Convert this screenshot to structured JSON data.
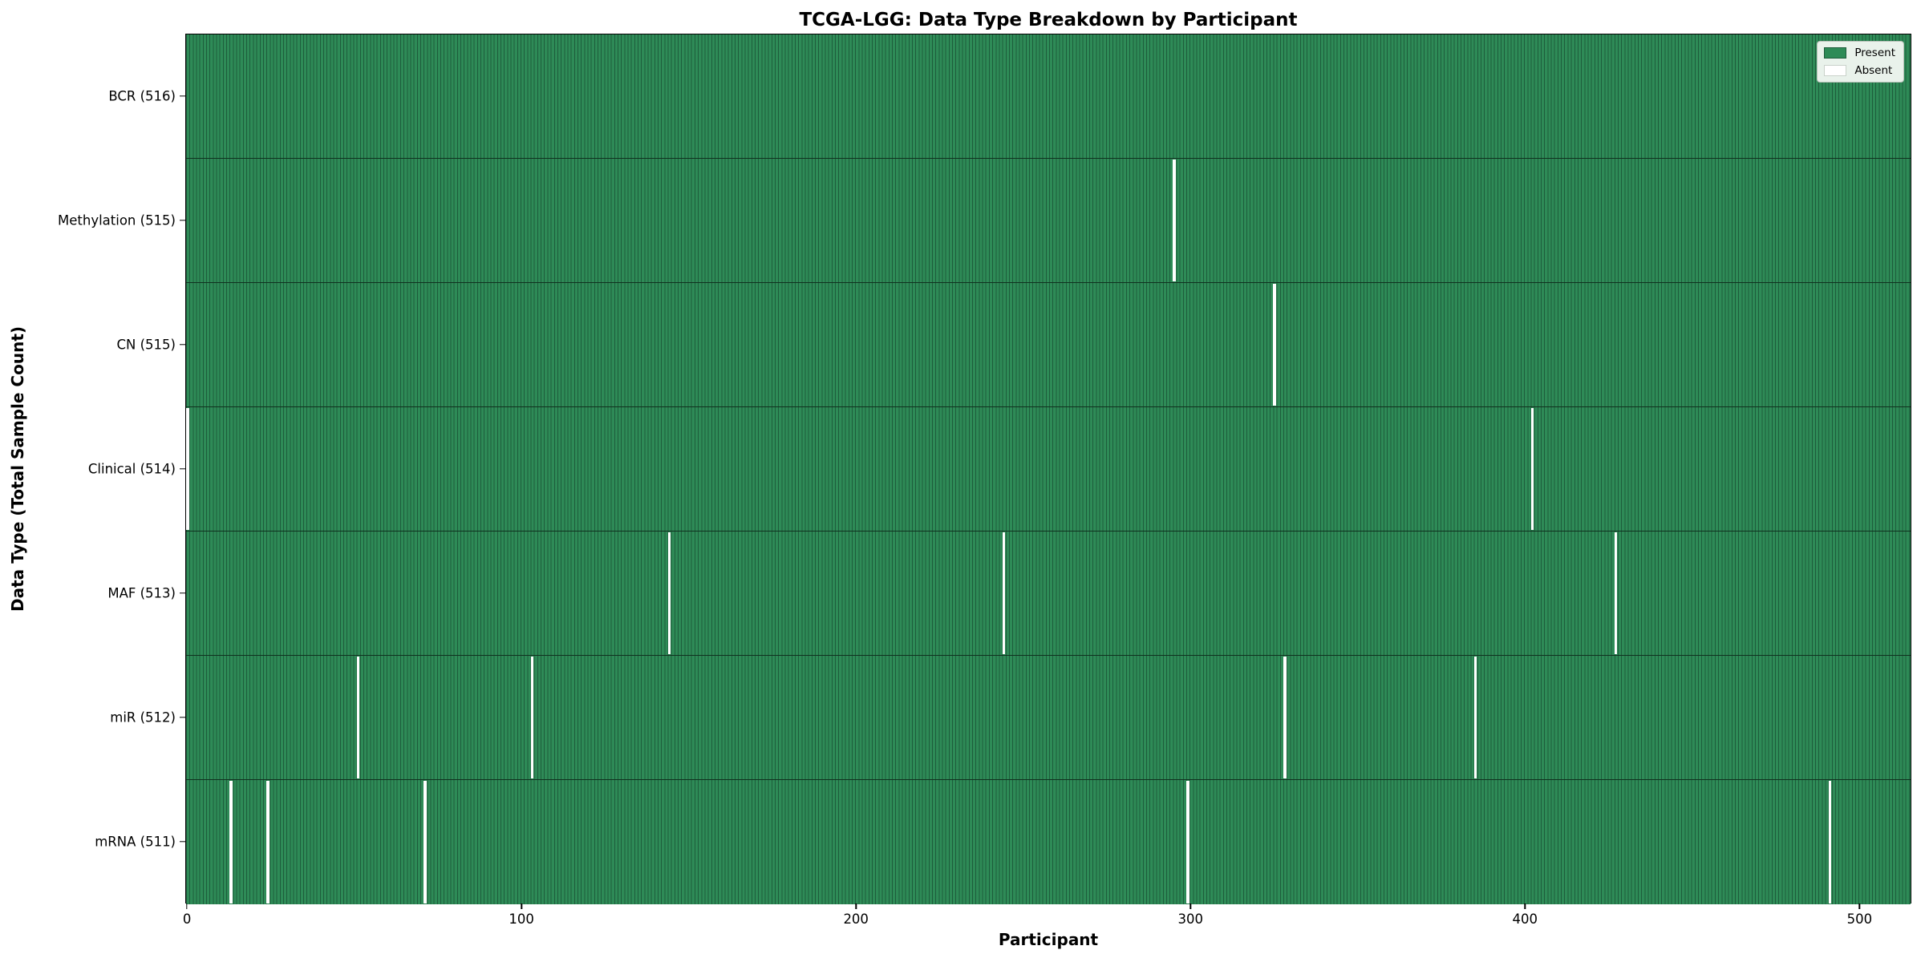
{
  "figure": {
    "title": "TCGA-LGG: Data Type Breakdown by Participant",
    "xlabel": "Participant",
    "ylabel": "Data Type (Total Sample Count)"
  },
  "legend": {
    "present_label": "Present",
    "absent_label": "Absent",
    "position": "upper right"
  },
  "colors": {
    "present_fill": "#2e8b57",
    "bar_edge": "#1d5c3b",
    "absent_fill": "#ffffff",
    "plot_border": "#000000",
    "legend_bg": "#e9f2eb"
  },
  "chart_data": {
    "type": "heatmap",
    "title": "TCGA-LGG: Data Type Breakdown by Participant",
    "xlabel": "Participant",
    "ylabel": "Data Type (Total Sample Count)",
    "legend": [
      "Present",
      "Absent"
    ],
    "legend_position": "upper right",
    "grid": false,
    "n_participants": 516,
    "x_ticks": [
      0,
      100,
      200,
      300,
      400,
      500
    ],
    "xlim": [
      -0.5,
      515.5
    ],
    "rows": [
      {
        "label": "BCR (516)",
        "data_type": "BCR",
        "total_samples": 516,
        "absent_participants": []
      },
      {
        "label": "Methylation (515)",
        "data_type": "Methylation",
        "total_samples": 515,
        "absent_participants": [
          295
        ]
      },
      {
        "label": "CN (515)",
        "data_type": "CN",
        "total_samples": 515,
        "absent_participants": [
          325
        ]
      },
      {
        "label": "Clinical (514)",
        "data_type": "Clinical",
        "total_samples": 514,
        "absent_participants": [
          0,
          402
        ]
      },
      {
        "label": "MAF (513)",
        "data_type": "MAF",
        "total_samples": 513,
        "absent_participants": [
          144,
          244,
          427
        ]
      },
      {
        "label": "miR (512)",
        "data_type": "miR",
        "total_samples": 512,
        "absent_participants": [
          51,
          103,
          328,
          385
        ]
      },
      {
        "label": "mRNA (511)",
        "data_type": "mRNA",
        "total_samples": 511,
        "absent_participants": [
          13,
          24,
          71,
          299,
          491
        ]
      }
    ]
  }
}
